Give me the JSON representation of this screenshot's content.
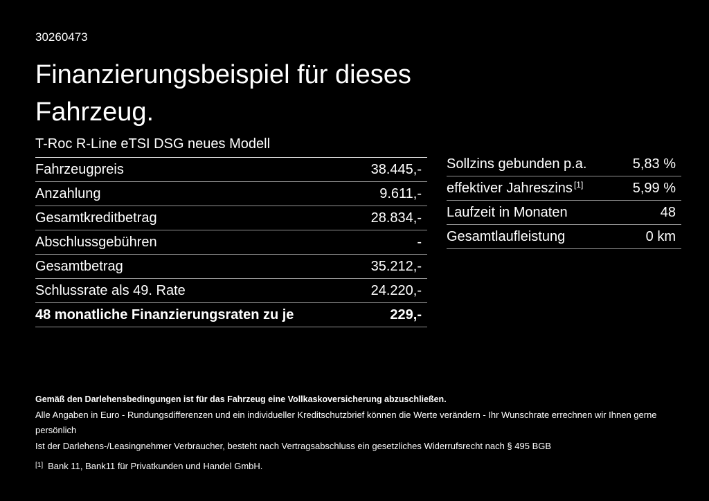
{
  "page": {
    "doc_id": "30260473",
    "title": "Finanzierungsbeispiel für dieses Fahrzeug.",
    "subtitle": "T-Roc R-Line eTSI DSG neues Modell"
  },
  "finance_table": {
    "rows": [
      {
        "label": "Fahrzeugpreis",
        "value": "38.445,-"
      },
      {
        "label": "Anzahlung",
        "value": "9.611,-"
      },
      {
        "label": "Gesamtkreditbetrag",
        "value": "28.834,-"
      },
      {
        "label": "Abschlussgebühren",
        "value": "-"
      },
      {
        "label": "Gesamtbetrag",
        "value": "35.212,-"
      },
      {
        "label": "Schlussrate als 49. Rate",
        "value": "24.220,-"
      },
      {
        "label": "48 monatliche Finanzierungsraten zu je",
        "value": "229,-"
      }
    ]
  },
  "conditions_table": {
    "rows": [
      {
        "label": "Sollzins gebunden p.a.",
        "value": "5,83 %"
      },
      {
        "label": "effektiver Jahreszins",
        "footnote_ref": "[1]",
        "value": "5,99 %"
      },
      {
        "label": "Laufzeit in Monaten",
        "value": "48"
      },
      {
        "label": "Gesamtlaufleistung",
        "value": "0 km"
      }
    ]
  },
  "footer": {
    "insurance_note": "Gemäß den Darlehensbedingungen ist für das Fahrzeug eine Vollkaskoversicherung abzuschließen.",
    "disclaimer_line1": "Alle Angaben in Euro - Rundungsdifferenzen und ein individueller Kreditschutzbrief können die Werte verändern - Ihr Wunschrate errechnen wir Ihnen gerne persönlich",
    "disclaimer_line2": "Ist der Darlehens-/Leasingnehmer Verbraucher, besteht nach Vertragsabschluss ein gesetzliches Widerrufsrecht nach § 495 BGB",
    "footnote_marker": "[1]",
    "footnote_text": "Bank 11, Bank11 für Privatkunden und Handel GmbH."
  },
  "colors": {
    "background": "#000000",
    "text": "#ffffff",
    "row_divider": "#969696",
    "header_divider": "#e6e6e6"
  }
}
